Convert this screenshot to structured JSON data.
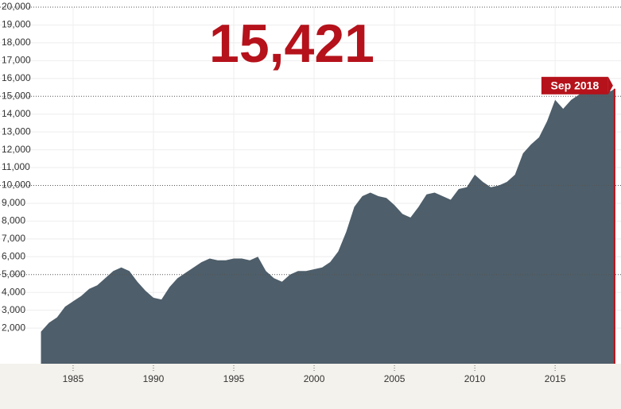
{
  "chart_data": {
    "type": "area",
    "headline": "15,421",
    "end_label": "Sep 2018",
    "color": "#4e5e6a",
    "highlight_color": "#b5121b",
    "grid": true,
    "x": [
      1983.0,
      1983.5,
      1984.0,
      1984.5,
      1985.0,
      1985.5,
      1986.0,
      1986.5,
      1987.0,
      1987.5,
      1988.0,
      1988.5,
      1989.0,
      1989.5,
      1990.0,
      1990.5,
      1991.0,
      1991.5,
      1992.0,
      1992.5,
      1993.0,
      1993.5,
      1994.0,
      1994.5,
      1995.0,
      1995.5,
      1996.0,
      1996.5,
      1997.0,
      1997.5,
      1998.0,
      1998.5,
      1999.0,
      1999.5,
      2000.0,
      2000.5,
      2001.0,
      2001.5,
      2002.0,
      2002.5,
      2003.0,
      2003.5,
      2004.0,
      2004.5,
      2005.0,
      2005.5,
      2006.0,
      2006.5,
      2007.0,
      2007.5,
      2008.0,
      2008.5,
      2009.0,
      2009.5,
      2010.0,
      2010.5,
      2011.0,
      2011.5,
      2012.0,
      2012.5,
      2013.0,
      2013.5,
      2014.0,
      2014.5,
      2015.0,
      2015.5,
      2016.0,
      2016.5,
      2017.0,
      2017.5,
      2018.0,
      2018.5,
      2018.7
    ],
    "series": [
      {
        "values": [
          1800,
          2300,
          2600,
          3200,
          3500,
          3800,
          4200,
          4400,
          4800,
          5200,
          5400,
          5200,
          4600,
          4100,
          3700,
          3600,
          4300,
          4800,
          5100,
          5400,
          5700,
          5900,
          5800,
          5800,
          5900,
          5900,
          5800,
          6000,
          5200,
          4800,
          4600,
          5000,
          5200,
          5200,
          5300,
          5400,
          5700,
          6300,
          7400,
          8800,
          9400,
          9600,
          9400,
          9300,
          8900,
          8400,
          8200,
          8800,
          9500,
          9600,
          9400,
          9200,
          9800,
          9900,
          10600,
          10200,
          9900,
          10000,
          10200,
          10600,
          11800,
          12300,
          12700,
          13600,
          14800,
          14300,
          14800,
          15100,
          15400,
          15500,
          15200,
          15300,
          15421
        ]
      }
    ],
    "xlim": [
      1980.45,
      2019.1
    ],
    "ylim": [
      0,
      20000
    ],
    "xticks": [
      1985,
      1990,
      1995,
      2000,
      2005,
      2010,
      2015
    ],
    "yticks": [
      {
        "value": 2000,
        "label": "2,000"
      },
      {
        "value": 3000,
        "label": "3,000"
      },
      {
        "value": 4000,
        "label": "4,000"
      },
      {
        "value": 5000,
        "label": "5,000"
      },
      {
        "value": 6000,
        "label": "6,000"
      },
      {
        "value": 7000,
        "label": "7,000"
      },
      {
        "value": 8000,
        "label": "8,000"
      },
      {
        "value": 9000,
        "label": "9,000"
      },
      {
        "value": 10000,
        "label": "10,000"
      },
      {
        "value": 11000,
        "label": "11,000"
      },
      {
        "value": 12000,
        "label": "12,000"
      },
      {
        "value": 13000,
        "label": "13,000"
      },
      {
        "value": 14000,
        "label": "14,000"
      },
      {
        "value": 15000,
        "label": "15,000"
      },
      {
        "value": 16000,
        "label": "16,000"
      },
      {
        "value": 17000,
        "label": "17,000"
      },
      {
        "value": 18000,
        "label": "18,000"
      },
      {
        "value": 19000,
        "label": "19,000"
      },
      {
        "value": 20000,
        "label": "20,000"
      }
    ]
  }
}
